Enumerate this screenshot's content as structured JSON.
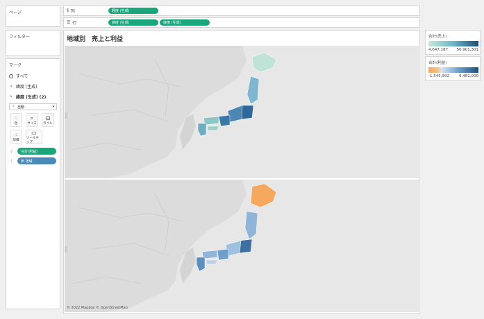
{
  "pages_label": "ページ",
  "filters_label": "フィルター",
  "marks_title": "マーク",
  "marks": {
    "all_label": "すべて",
    "lat1_label": "緯度 (生成)",
    "lat2_label": "緯度 (生成) (2)",
    "type_label": "自動",
    "btn_color": "色",
    "btn_size": "サイズ",
    "btn_label": "ラベル",
    "btn_detail": "詳細",
    "btn_tooltip": "ツールチップ",
    "pill_profit": "合計(利益)",
    "pill_region": "田 地域"
  },
  "columns_shelf": {
    "label": "列",
    "pills": [
      "経度 (生成)"
    ]
  },
  "rows_shelf": {
    "label": "行",
    "pills": [
      "緯度 (生成)",
      "緯度 (生成)"
    ]
  },
  "sheet_title": "地域別　売上と利益",
  "attribution": "© 2022 Mapbox © OpenStreetMap",
  "legend_sales": {
    "title": "合計(売上)",
    "min": "4,647,187",
    "max": "56,901,301"
  },
  "legend_profit": {
    "title": "合計(利益)",
    "min": "-1,545,992",
    "max": "9,481,000"
  },
  "colors": {
    "pill_green": "#1aa57b",
    "pill_blue": "#4a8ab8",
    "sales_low": "#c7e8dc",
    "sales_high": "#1f4d7c",
    "profit_neg": "#f4a95f",
    "profit_high": "#1f4d7c"
  }
}
